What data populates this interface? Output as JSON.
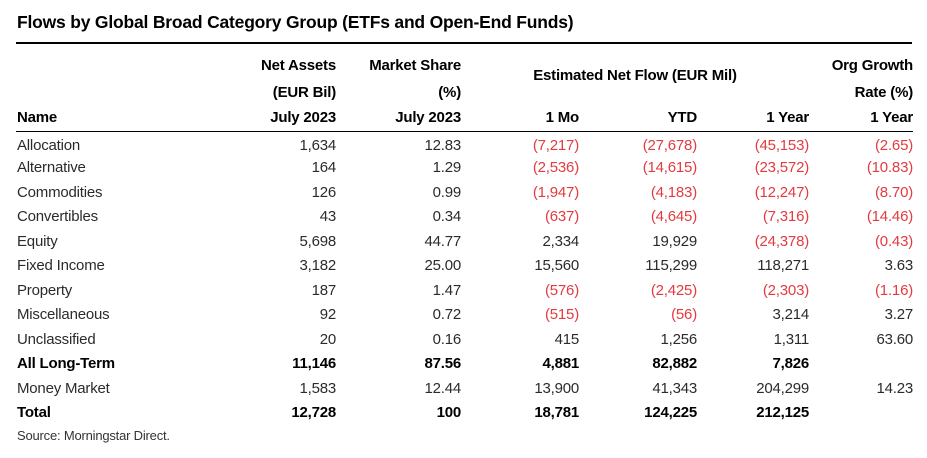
{
  "title": "Flows by Global Broad Category Group (ETFs and Open-End Funds)",
  "source": "Source: Morningstar Direct.",
  "colors": {
    "negative_value": "#e23b40",
    "heading_text": "#000000",
    "body_text": "#2b2b2b",
    "rule": "#000000",
    "background": "#ffffff"
  },
  "header": {
    "name": "Name",
    "net_assets": {
      "line1": "Net Assets",
      "line2": "(EUR Bil)",
      "line3": "July 2023"
    },
    "market_share": {
      "line1": "Market Share",
      "line2": "(%)",
      "line3": "July 2023"
    },
    "net_flow_group": "Estimated Net Flow (EUR Mil)",
    "one_mo": "1 Mo",
    "ytd": "YTD",
    "one_year": "1 Year",
    "org_growth": {
      "line1": "Org Growth",
      "line2": "Rate (%)",
      "line3": "1 Year"
    }
  },
  "rows": [
    {
      "name": "Allocation",
      "net_assets": "1,634",
      "market_share": "12.83",
      "one_mo": "(7,217)",
      "ytd": "(27,678)",
      "one_year": "(45,153)",
      "org_growth": "(2.65)"
    },
    {
      "name": "Alternative",
      "net_assets": "164",
      "market_share": "1.29",
      "one_mo": "(2,536)",
      "ytd": "(14,615)",
      "one_year": "(23,572)",
      "org_growth": "(10.83)"
    },
    {
      "name": "Commodities",
      "net_assets": "126",
      "market_share": "0.99",
      "one_mo": "(1,947)",
      "ytd": "(4,183)",
      "one_year": "(12,247)",
      "org_growth": "(8.70)"
    },
    {
      "name": "Convertibles",
      "net_assets": "43",
      "market_share": "0.34",
      "one_mo": "(637)",
      "ytd": "(4,645)",
      "one_year": "(7,316)",
      "org_growth": "(14.46)"
    },
    {
      "name": "Equity",
      "net_assets": "5,698",
      "market_share": "44.77",
      "one_mo": "2,334",
      "ytd": "19,929",
      "one_year": "(24,378)",
      "org_growth": "(0.43)"
    },
    {
      "name": "Fixed Income",
      "net_assets": "3,182",
      "market_share": "25.00",
      "one_mo": "15,560",
      "ytd": "115,299",
      "one_year": "118,271",
      "org_growth": "3.63"
    },
    {
      "name": "Property",
      "net_assets": "187",
      "market_share": "1.47",
      "one_mo": "(576)",
      "ytd": "(2,425)",
      "one_year": "(2,303)",
      "org_growth": "(1.16)"
    },
    {
      "name": "Miscellaneous",
      "net_assets": "92",
      "market_share": "0.72",
      "one_mo": "(515)",
      "ytd": "(56)",
      "one_year": "3,214",
      "org_growth": "3.27"
    },
    {
      "name": "Unclassified",
      "net_assets": "20",
      "market_share": "0.16",
      "one_mo": "415",
      "ytd": "1,256",
      "one_year": "1,311",
      "org_growth": "63.60"
    },
    {
      "name": "All Long-Term",
      "net_assets": "11,146",
      "market_share": "87.56",
      "one_mo": "4,881",
      "ytd": "82,882",
      "one_year": "7,826",
      "org_growth": "",
      "bold": true
    },
    {
      "name": "Money Market",
      "net_assets": "1,583",
      "market_share": "12.44",
      "one_mo": "13,900",
      "ytd": "41,343",
      "one_year": "204,299",
      "org_growth": "14.23"
    },
    {
      "name": "Total",
      "net_assets": "12,728",
      "market_share": "100",
      "one_mo": "18,781",
      "ytd": "124,225",
      "one_year": "212,125",
      "org_growth": "",
      "bold": true
    }
  ]
}
